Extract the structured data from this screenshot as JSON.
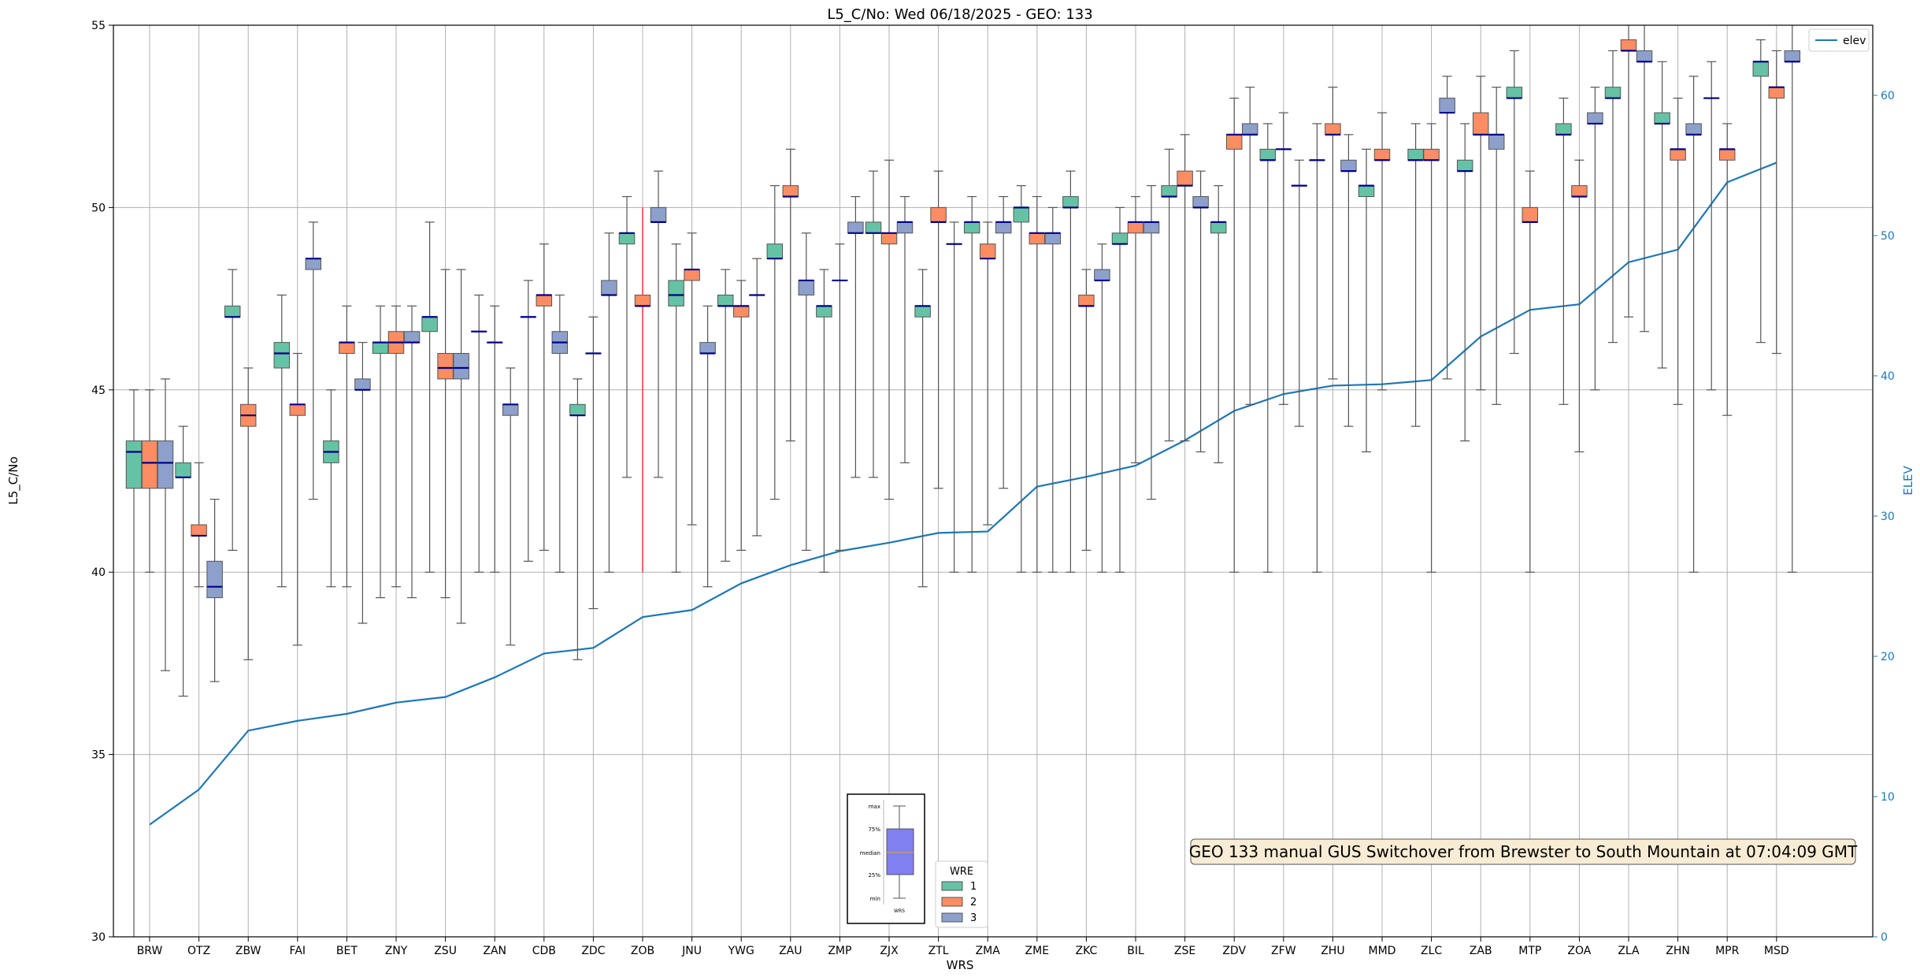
{
  "chart_data": {
    "type": "box",
    "title": "L5_C/No: Wed 06/18/2025 - GEO: 133",
    "xlabel": "WRS",
    "ylabel": "L5_C/No",
    "y2label": "ELEV",
    "ylim": [
      30,
      55
    ],
    "y2lim": [
      0,
      65
    ],
    "yticks": [
      30,
      35,
      40,
      45,
      50,
      55
    ],
    "y2ticks": [
      0,
      10,
      20,
      30,
      40,
      50,
      60
    ],
    "grid": true,
    "colors": {
      "wre1": "#66c2a5",
      "wre2": "#fc8d62",
      "wre3": "#8da0cb",
      "elev": "#1f77b4",
      "median": "#00008b",
      "whisker": "#555555",
      "highlight": "#ff0000",
      "axis2": "#1f77b4"
    },
    "categories": [
      "BRW",
      "OTZ",
      "ZBW",
      "FAI",
      "BET",
      "ZNY",
      "ZSU",
      "ZAN",
      "CDB",
      "ZDC",
      "ZOB",
      "JNU",
      "YWG",
      "ZAU",
      "ZMP",
      "ZJX",
      "ZTL",
      "ZMA",
      "ZME",
      "ZKC",
      "BIL",
      "ZSE",
      "ZDV",
      "ZFW",
      "ZHU",
      "MMD",
      "ZLC",
      "ZAB",
      "MTP",
      "ZOA",
      "ZLA",
      "ZHN",
      "MPR",
      "MSD"
    ],
    "elev": [
      8,
      10.5,
      14.7,
      15.4,
      15.9,
      16.7,
      17.1,
      18.5,
      20.2,
      20.6,
      22.8,
      23.3,
      25.2,
      26.5,
      27.5,
      28.1,
      28.8,
      28.9,
      32.1,
      32.8,
      33.6,
      35.4,
      37.5,
      38.7,
      39.3,
      39.4,
      39.7,
      42.8,
      44.7,
      45.1,
      48.1,
      49,
      53.8,
      55.2
    ],
    "boxes": [
      {
        "site": "BRW",
        "wre": 1,
        "min": 30,
        "q1": 42.3,
        "median": 43.3,
        "q3": 43.6,
        "max": 45
      },
      {
        "site": "BRW",
        "wre": 2,
        "min": 40,
        "q1": 42.3,
        "median": 43,
        "q3": 43.6,
        "max": 45
      },
      {
        "site": "BRW",
        "wre": 3,
        "min": 37.3,
        "q1": 42.3,
        "median": 43,
        "q3": 43.6,
        "max": 45.3
      },
      {
        "site": "OTZ",
        "wre": 1,
        "min": 36.6,
        "q1": 42.6,
        "median": 42.6,
        "q3": 43,
        "max": 44
      },
      {
        "site": "OTZ",
        "wre": 2,
        "min": 39.6,
        "q1": 41,
        "median": 41,
        "q3": 41.3,
        "max": 43
      },
      {
        "site": "OTZ",
        "wre": 3,
        "min": 37,
        "q1": 39.3,
        "median": 39.6,
        "q3": 40.3,
        "max": 42
      },
      {
        "site": "ZBW",
        "wre": 1,
        "min": 40.6,
        "q1": 47,
        "median": 47,
        "q3": 47.3,
        "max": 48.3
      },
      {
        "site": "ZBW",
        "wre": 2,
        "min": 37.6,
        "q1": 44,
        "median": 44.3,
        "q3": 44.6,
        "max": 45.6
      },
      {
        "site": "FAI",
        "wre": 1,
        "min": 39.6,
        "q1": 45.6,
        "median": 46,
        "q3": 46.3,
        "max": 47.6
      },
      {
        "site": "FAI",
        "wre": 2,
        "min": 38,
        "q1": 44.3,
        "median": 44.6,
        "q3": 44.6,
        "max": 46
      },
      {
        "site": "FAI",
        "wre": 3,
        "min": 42,
        "q1": 48.3,
        "median": 48.6,
        "q3": 48.6,
        "max": 49.6
      },
      {
        "site": "BET",
        "wre": 1,
        "min": 39.6,
        "q1": 43,
        "median": 43.3,
        "q3": 43.6,
        "max": 45
      },
      {
        "site": "BET",
        "wre": 2,
        "min": 39.6,
        "q1": 46,
        "median": 46.3,
        "q3": 46.3,
        "max": 47.3
      },
      {
        "site": "BET",
        "wre": 3,
        "min": 38.6,
        "q1": 45,
        "median": 45,
        "q3": 45.3,
        "max": 46.3
      },
      {
        "site": "ZNY",
        "wre": 1,
        "min": 39.3,
        "q1": 46,
        "median": 46.3,
        "q3": 46.3,
        "max": 47.3
      },
      {
        "site": "ZNY",
        "wre": 2,
        "min": 39.6,
        "q1": 46,
        "median": 46.3,
        "q3": 46.6,
        "max": 47.3
      },
      {
        "site": "ZNY",
        "wre": 3,
        "min": 39.3,
        "q1": 46.3,
        "median": 46.3,
        "q3": 46.6,
        "max": 47.3
      },
      {
        "site": "ZSU",
        "wre": 1,
        "min": 40,
        "q1": 46.6,
        "median": 47,
        "q3": 47,
        "max": 49.6
      },
      {
        "site": "ZSU",
        "wre": 2,
        "min": 39.3,
        "q1": 45.3,
        "median": 45.6,
        "q3": 46,
        "max": 48.3
      },
      {
        "site": "ZSU",
        "wre": 3,
        "min": 38.6,
        "q1": 45.3,
        "median": 45.6,
        "q3": 46,
        "max": 48.3
      },
      {
        "site": "ZAN",
        "wre": 1,
        "min": 40,
        "q1": 46.6,
        "median": 46.6,
        "q3": 46.6,
        "max": 47.6
      },
      {
        "site": "ZAN",
        "wre": 2,
        "min": 40,
        "q1": 46.3,
        "median": 46.3,
        "q3": 46.3,
        "max": 47.3
      },
      {
        "site": "ZAN",
        "wre": 3,
        "min": 38,
        "q1": 44.3,
        "median": 44.6,
        "q3": 44.6,
        "max": 45.6
      },
      {
        "site": "CDB",
        "wre": 1,
        "min": 40.3,
        "q1": 47,
        "median": 47,
        "q3": 47,
        "max": 48
      },
      {
        "site": "CDB",
        "wre": 2,
        "min": 40.6,
        "q1": 47.3,
        "median": 47.6,
        "q3": 47.6,
        "max": 49
      },
      {
        "site": "CDB",
        "wre": 3,
        "min": 40,
        "q1": 46,
        "median": 46.3,
        "q3": 46.6,
        "max": 47.6
      },
      {
        "site": "ZDC",
        "wre": 1,
        "min": 37.6,
        "q1": 44.3,
        "median": 44.3,
        "q3": 44.6,
        "max": 45.3
      },
      {
        "site": "ZDC",
        "wre": 2,
        "min": 39,
        "q1": 46,
        "median": 46,
        "q3": 46,
        "max": 47
      },
      {
        "site": "ZDC",
        "wre": 3,
        "min": 40,
        "q1": 47.6,
        "median": 47.6,
        "q3": 48,
        "max": 49.3
      },
      {
        "site": "ZOB",
        "wre": 1,
        "min": 42.6,
        "q1": 49,
        "median": 49.3,
        "q3": 49.3,
        "max": 50.3
      },
      {
        "site": "ZOB",
        "wre": 2,
        "min": 40,
        "q1": 47.3,
        "median": 47.3,
        "q3": 47.6,
        "max": 50
      },
      {
        "site": "ZOB",
        "wre": 3,
        "min": 42.6,
        "q1": 49.6,
        "median": 49.6,
        "q3": 50,
        "max": 51
      },
      {
        "site": "JNU",
        "wre": 1,
        "min": 40,
        "q1": 47.3,
        "median": 47.6,
        "q3": 48,
        "max": 49
      },
      {
        "site": "JNU",
        "wre": 2,
        "min": 41.3,
        "q1": 48,
        "median": 48.3,
        "q3": 48.3,
        "max": 49.3
      },
      {
        "site": "JNU",
        "wre": 3,
        "min": 39.6,
        "q1": 46,
        "median": 46,
        "q3": 46.3,
        "max": 47.3
      },
      {
        "site": "YWG",
        "wre": 1,
        "min": 40.3,
        "q1": 47.3,
        "median": 47.3,
        "q3": 47.6,
        "max": 48.3
      },
      {
        "site": "YWG",
        "wre": 2,
        "min": 40.6,
        "q1": 47,
        "median": 47.3,
        "q3": 47.3,
        "max": 48
      },
      {
        "site": "YWG",
        "wre": 3,
        "min": 41,
        "q1": 47.6,
        "median": 47.6,
        "q3": 47.6,
        "max": 48.6
      },
      {
        "site": "ZAU",
        "wre": 1,
        "min": 42,
        "q1": 48.6,
        "median": 48.6,
        "q3": 49,
        "max": 50.6
      },
      {
        "site": "ZAU",
        "wre": 2,
        "min": 43.6,
        "q1": 50.3,
        "median": 50.3,
        "q3": 50.6,
        "max": 51.6
      },
      {
        "site": "ZAU",
        "wre": 3,
        "min": 40.6,
        "q1": 47.6,
        "median": 48,
        "q3": 48,
        "max": 49.3
      },
      {
        "site": "ZMP",
        "wre": 1,
        "min": 40,
        "q1": 47,
        "median": 47.3,
        "q3": 47.3,
        "max": 48.3
      },
      {
        "site": "ZMP",
        "wre": 2,
        "min": 40.6,
        "q1": 48,
        "median": 48,
        "q3": 48,
        "max": 49
      },
      {
        "site": "ZMP",
        "wre": 3,
        "min": 42.6,
        "q1": 49.3,
        "median": 49.3,
        "q3": 49.6,
        "max": 50.3
      },
      {
        "site": "ZJX",
        "wre": 1,
        "min": 42.6,
        "q1": 49.3,
        "median": 49.3,
        "q3": 49.6,
        "max": 51
      },
      {
        "site": "ZJX",
        "wre": 2,
        "min": 42,
        "q1": 49,
        "median": 49.3,
        "q3": 49.3,
        "max": 51.3
      },
      {
        "site": "ZJX",
        "wre": 3,
        "min": 43,
        "q1": 49.3,
        "median": 49.6,
        "q3": 49.6,
        "max": 50.3
      },
      {
        "site": "ZTL",
        "wre": 1,
        "min": 39.6,
        "q1": 47,
        "median": 47.3,
        "q3": 47.3,
        "max": 48.3
      },
      {
        "site": "ZTL",
        "wre": 2,
        "min": 42.3,
        "q1": 49.6,
        "median": 49.6,
        "q3": 50,
        "max": 51
      },
      {
        "site": "ZTL",
        "wre": 3,
        "min": 40,
        "q1": 49,
        "median": 49,
        "q3": 49,
        "max": 49.6
      },
      {
        "site": "ZMA",
        "wre": 1,
        "min": 40,
        "q1": 49.3,
        "median": 49.6,
        "q3": 49.6,
        "max": 50.3
      },
      {
        "site": "ZMA",
        "wre": 2,
        "min": 41.3,
        "q1": 48.6,
        "median": 48.6,
        "q3": 49,
        "max": 49.6
      },
      {
        "site": "ZMA",
        "wre": 3,
        "min": 42.3,
        "q1": 49.3,
        "median": 49.6,
        "q3": 49.6,
        "max": 50.3
      },
      {
        "site": "ZME",
        "wre": 1,
        "min": 40,
        "q1": 49.6,
        "median": 50,
        "q3": 50,
        "max": 50.6
      },
      {
        "site": "ZME",
        "wre": 2,
        "min": 40,
        "q1": 49,
        "median": 49.3,
        "q3": 49.3,
        "max": 50.3
      },
      {
        "site": "ZME",
        "wre": 3,
        "min": 40,
        "q1": 49,
        "median": 49.3,
        "q3": 49.3,
        "max": 50
      },
      {
        "site": "ZKC",
        "wre": 1,
        "min": 40,
        "q1": 50,
        "median": 50,
        "q3": 50.3,
        "max": 51
      },
      {
        "site": "ZKC",
        "wre": 2,
        "min": 40.6,
        "q1": 47.3,
        "median": 47.3,
        "q3": 47.6,
        "max": 48.3
      },
      {
        "site": "ZKC",
        "wre": 3,
        "min": 40,
        "q1": 48,
        "median": 48,
        "q3": 48.3,
        "max": 49
      },
      {
        "site": "BIL",
        "wre": 1,
        "min": 40,
        "q1": 49,
        "median": 49,
        "q3": 49.3,
        "max": 50
      },
      {
        "site": "BIL",
        "wre": 2,
        "min": 43,
        "q1": 49.3,
        "median": 49.6,
        "q3": 49.6,
        "max": 50.3
      },
      {
        "site": "BIL",
        "wre": 3,
        "min": 42,
        "q1": 49.3,
        "median": 49.6,
        "q3": 49.6,
        "max": 50.6
      },
      {
        "site": "ZSE",
        "wre": 1,
        "min": 43.6,
        "q1": 50.3,
        "median": 50.3,
        "q3": 50.6,
        "max": 51.6
      },
      {
        "site": "ZSE",
        "wre": 2,
        "min": 43.6,
        "q1": 50.6,
        "median": 50.6,
        "q3": 51,
        "max": 52
      },
      {
        "site": "ZSE",
        "wre": 3,
        "min": 43.3,
        "q1": 50,
        "median": 50,
        "q3": 50.3,
        "max": 51
      },
      {
        "site": "ZDV",
        "wre": 1,
        "min": 43,
        "q1": 49.3,
        "median": 49.6,
        "q3": 49.6,
        "max": 50.6
      },
      {
        "site": "ZDV",
        "wre": 2,
        "min": 40,
        "q1": 51.6,
        "median": 52,
        "q3": 52,
        "max": 53
      },
      {
        "site": "ZDV",
        "wre": 3,
        "min": 44.6,
        "q1": 52,
        "median": 52,
        "q3": 52.3,
        "max": 53.3
      },
      {
        "site": "ZFW",
        "wre": 1,
        "min": 40,
        "q1": 51.3,
        "median": 51.3,
        "q3": 51.6,
        "max": 52.3
      },
      {
        "site": "ZFW",
        "wre": 2,
        "min": 44.6,
        "q1": 51.6,
        "median": 51.6,
        "q3": 51.6,
        "max": 52.6
      },
      {
        "site": "ZFW",
        "wre": 3,
        "min": 44,
        "q1": 50.6,
        "median": 50.6,
        "q3": 50.6,
        "max": 51.3
      },
      {
        "site": "ZHU",
        "wre": 1,
        "min": 40,
        "q1": 51.3,
        "median": 51.3,
        "q3": 51.3,
        "max": 52.3
      },
      {
        "site": "ZHU",
        "wre": 2,
        "min": 45.3,
        "q1": 52,
        "median": 52,
        "q3": 52.3,
        "max": 53.3
      },
      {
        "site": "ZHU",
        "wre": 3,
        "min": 44,
        "q1": 51,
        "median": 51,
        "q3": 51.3,
        "max": 52
      },
      {
        "site": "MMD",
        "wre": 1,
        "min": 43.3,
        "q1": 50.3,
        "median": 50.6,
        "q3": 50.6,
        "max": 51.6
      },
      {
        "site": "MMD",
        "wre": 2,
        "min": 45,
        "q1": 51.3,
        "median": 51.3,
        "q3": 51.6,
        "max": 52.6
      },
      {
        "site": "ZLC",
        "wre": 1,
        "min": 44,
        "q1": 51.3,
        "median": 51.3,
        "q3": 51.6,
        "max": 52.3
      },
      {
        "site": "ZLC",
        "wre": 2,
        "min": 40,
        "q1": 51.3,
        "median": 51.3,
        "q3": 51.6,
        "max": 52.3
      },
      {
        "site": "ZLC",
        "wre": 3,
        "min": 45.3,
        "q1": 52.6,
        "median": 52.6,
        "q3": 53,
        "max": 53.6
      },
      {
        "site": "ZAB",
        "wre": 1,
        "min": 43.6,
        "q1": 51,
        "median": 51,
        "q3": 51.3,
        "max": 52.3
      },
      {
        "site": "ZAB",
        "wre": 2,
        "min": 45,
        "q1": 52,
        "median": 52,
        "q3": 52.6,
        "max": 53.6
      },
      {
        "site": "ZAB",
        "wre": 3,
        "min": 44.6,
        "q1": 51.6,
        "median": 52,
        "q3": 52,
        "max": 53.3
      },
      {
        "site": "MTP",
        "wre": 1,
        "min": 46,
        "q1": 53,
        "median": 53,
        "q3": 53.3,
        "max": 54.3
      },
      {
        "site": "MTP",
        "wre": 2,
        "min": 40,
        "q1": 49.6,
        "median": 49.6,
        "q3": 50,
        "max": 51
      },
      {
        "site": "ZOA",
        "wre": 1,
        "min": 44.6,
        "q1": 52,
        "median": 52,
        "q3": 52.3,
        "max": 53
      },
      {
        "site": "ZOA",
        "wre": 2,
        "min": 43.3,
        "q1": 50.3,
        "median": 50.3,
        "q3": 50.6,
        "max": 51.3
      },
      {
        "site": "ZOA",
        "wre": 3,
        "min": 45,
        "q1": 52.3,
        "median": 52.3,
        "q3": 52.6,
        "max": 53.3
      },
      {
        "site": "ZLA",
        "wre": 1,
        "min": 46.3,
        "q1": 53,
        "median": 53,
        "q3": 53.3,
        "max": 54.3
      },
      {
        "site": "ZLA",
        "wre": 2,
        "min": 47,
        "q1": 54.3,
        "median": 54.3,
        "q3": 54.6,
        "max": 55
      },
      {
        "site": "ZLA",
        "wre": 3,
        "min": 46.6,
        "q1": 54,
        "median": 54,
        "q3": 54.3,
        "max": 55
      },
      {
        "site": "ZHN",
        "wre": 1,
        "min": 45.6,
        "q1": 52.3,
        "median": 52.3,
        "q3": 52.6,
        "max": 54
      },
      {
        "site": "ZHN",
        "wre": 2,
        "min": 44.6,
        "q1": 51.3,
        "median": 51.6,
        "q3": 51.6,
        "max": 53
      },
      {
        "site": "ZHN",
        "wre": 3,
        "min": 40,
        "q1": 52,
        "median": 52,
        "q3": 52.3,
        "max": 53.6
      },
      {
        "site": "MPR",
        "wre": 1,
        "min": 45,
        "q1": 53,
        "median": 53,
        "q3": 53,
        "max": 54
      },
      {
        "site": "MPR",
        "wre": 2,
        "min": 44.3,
        "q1": 51.3,
        "median": 51.6,
        "q3": 51.6,
        "max": 52.3
      },
      {
        "site": "MSD",
        "wre": 1,
        "min": 46.3,
        "q1": 53.6,
        "median": 54,
        "q3": 54,
        "max": 54.6
      },
      {
        "site": "MSD",
        "wre": 2,
        "min": 46,
        "q1": 53,
        "median": 53.3,
        "q3": 53.3,
        "max": 54.3
      },
      {
        "site": "MSD",
        "wre": 3,
        "min": 40,
        "q1": 54,
        "median": 54,
        "q3": 54.3,
        "max": 55
      }
    ],
    "highlight": {
      "site": "ZOB",
      "wre": 2,
      "min": 40,
      "max": 50
    },
    "annotation": "GEO 133 manual GUS Switchover from Brewster to South Mountain at 07:04:09 GMT",
    "legend_wre": {
      "title": "WRE",
      "entries": [
        "1",
        "2",
        "3"
      ],
      "placement": "bottom-center"
    },
    "legend_elev": {
      "entries": [
        "elev"
      ],
      "placement": "top-right"
    },
    "inset_key": {
      "labels": [
        "max",
        "75%",
        "median",
        "25%",
        "min"
      ],
      "xlabel": "WRS"
    }
  }
}
